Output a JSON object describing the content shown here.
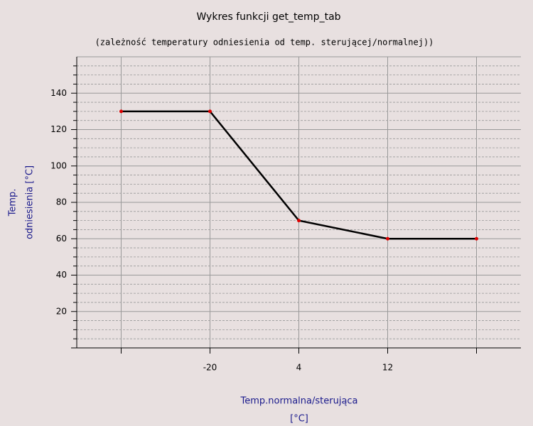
{
  "chart_data": {
    "type": "line",
    "title": "Wykres funkcji get_temp_tab",
    "subtitle": "(zależność temperatury odniesienia od temp. sterującej/normalnej))",
    "x_label": [
      "Temp.normalna/sterująca",
      "[°C]"
    ],
    "y_label": [
      "Temp.",
      "odniesienia [°C]"
    ],
    "categories": [
      null,
      "-20",
      "4",
      "12",
      null
    ],
    "series": [
      {
        "color": "#000000",
        "marker_color": "#dd0000",
        "values": [
          130,
          130,
          70,
          60,
          60
        ]
      }
    ],
    "ylim": [
      0,
      160
    ],
    "yticks": [
      20,
      40,
      60,
      80,
      100,
      120,
      140
    ],
    "minor_yticks": [
      5,
      10,
      15,
      25,
      30,
      35,
      45,
      50,
      55,
      65,
      70,
      75,
      85,
      90,
      95,
      105,
      110,
      115,
      125,
      130,
      135,
      145,
      150,
      155
    ],
    "grid": true
  }
}
